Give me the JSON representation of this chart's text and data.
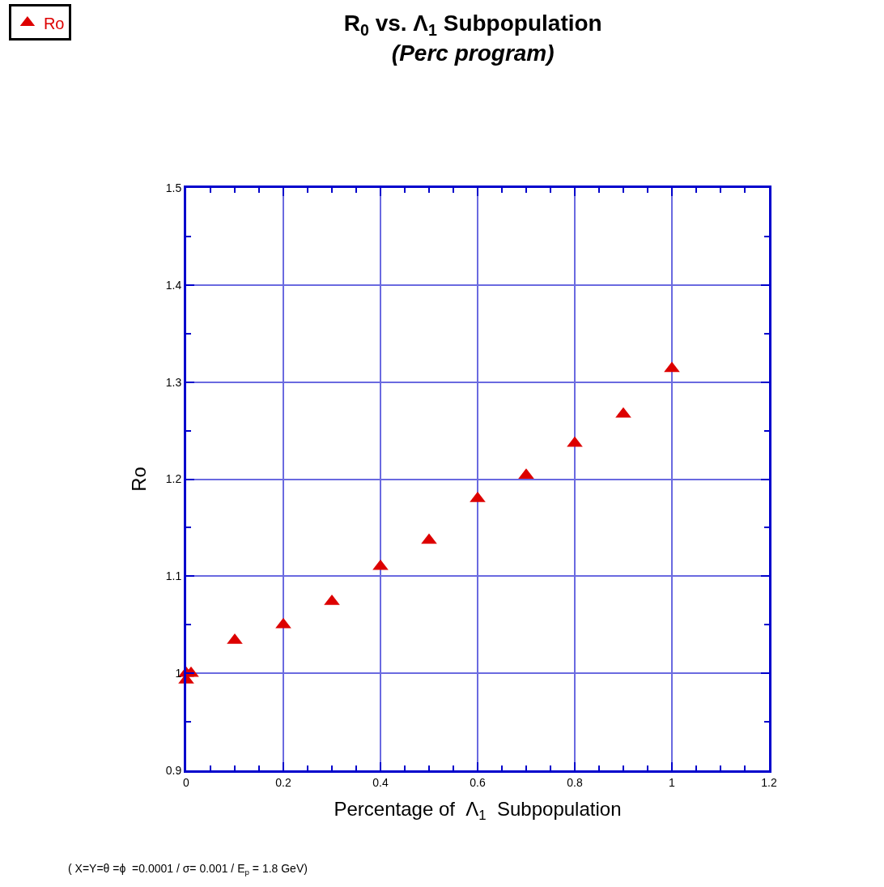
{
  "chart_data": {
    "type": "scatter",
    "title": "R$_{0}$ vs. Λ$_{1}$ Subpopulation",
    "subtitle": "(Perc program)",
    "xlabel": "Percentage of  Λ$_{1}$  Subpopulation",
    "ylabel": "Ro",
    "annotations": [
      "( X=Y=θ =ϕ  =0.0001 / σ= 0.001 / E$_{p}$ = 1.8 GeV)"
    ],
    "x": [
      0,
      0.01,
      0.1,
      0.2,
      0.3,
      0.4,
      0.5,
      0.6,
      0.7,
      0.8,
      0.9,
      1.0,
      0
    ],
    "series": [
      {
        "name": "Ro",
        "color": "#dd0000",
        "values": [
          0.993,
          1.0,
          1.034,
          1.05,
          1.074,
          1.11,
          1.137,
          1.18,
          1.204,
          1.237,
          1.267,
          1.314,
          1.0
        ]
      }
    ],
    "xlim": [
      0,
      1.2
    ],
    "xticks": [
      0,
      0.2,
      0.4,
      0.6,
      0.8,
      1,
      1.2
    ],
    "ylim": [
      0.9,
      1.5
    ],
    "yticks": [
      0.9,
      1,
      1.1,
      1.2,
      1.3,
      1.4,
      1.5
    ],
    "grid": true,
    "legend": "top left",
    "marker": "triangle"
  }
}
